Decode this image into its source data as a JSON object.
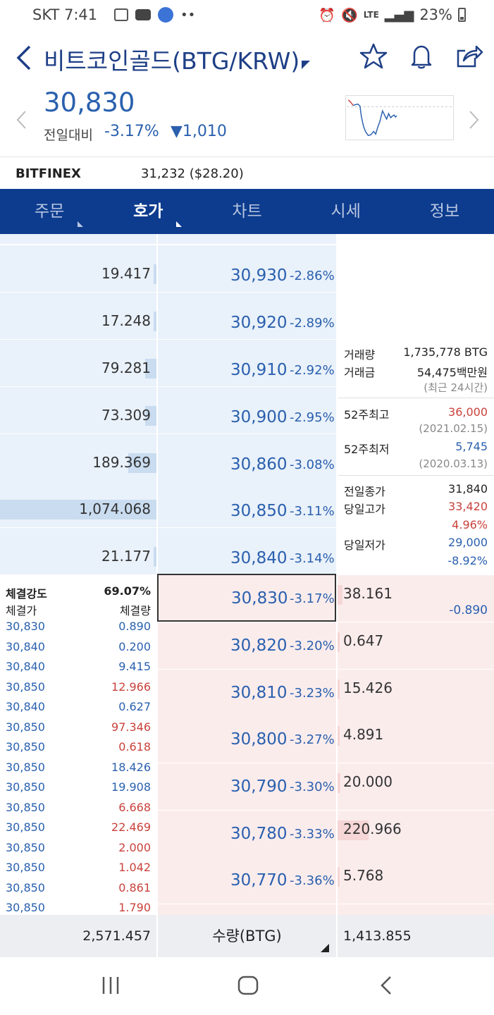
{
  "status": {
    "carrier_time": "SKT 7:41",
    "lte": "LTE",
    "battery": "23%"
  },
  "header": {
    "title": "비트코인골드(BTG/KRW)"
  },
  "price": {
    "current": "30,830",
    "prev_label": "전일대비",
    "change_pct": "-3.17%",
    "change_amt": "▼1,010"
  },
  "exchange": {
    "name": "BITFINEX",
    "value": "31,232 ($28.20)"
  },
  "tabs": [
    {
      "label": "주문",
      "active": false
    },
    {
      "label": "호가",
      "active": true
    },
    {
      "label": "차트",
      "active": false
    },
    {
      "label": "시세",
      "active": false
    },
    {
      "label": "정보",
      "active": false
    }
  ],
  "asks": [
    {
      "qty": "19.417",
      "price": "30,930",
      "rate": "-2.86%",
      "fill": 0.02
    },
    {
      "qty": "17.248",
      "price": "30,920",
      "rate": "-2.89%",
      "fill": 0.02
    },
    {
      "qty": "79.281",
      "price": "30,910",
      "rate": "-2.92%",
      "fill": 0.07
    },
    {
      "qty": "73.309",
      "price": "30,900",
      "rate": "-2.95%",
      "fill": 0.07
    },
    {
      "qty": "189.369",
      "price": "30,860",
      "rate": "-3.08%",
      "fill": 0.18
    },
    {
      "qty": "1,074.068",
      "price": "30,850",
      "rate": "-3.11%",
      "fill": 1.0
    },
    {
      "qty": "21.177",
      "price": "30,840",
      "rate": "-3.14%",
      "fill": 0.02
    }
  ],
  "bids": [
    {
      "qty": "38.161",
      "price": "30,830",
      "rate": "-3.17%",
      "fill": 0.03
    },
    {
      "qty": "0.647",
      "price": "30,820",
      "rate": "-3.20%",
      "fill": 0.0
    },
    {
      "qty": "15.426",
      "price": "30,810",
      "rate": "-3.23%",
      "fill": 0.015
    },
    {
      "qty": "4.891",
      "price": "30,800",
      "rate": "-3.27%",
      "fill": 0.005
    },
    {
      "qty": "20.000",
      "price": "30,790",
      "rate": "-3.30%",
      "fill": 0.02
    },
    {
      "qty": "220.966",
      "price": "30,780",
      "rate": "-3.33%",
      "fill": 0.2
    },
    {
      "qty": "5.768",
      "price": "30,770",
      "rate": "-3.36%",
      "fill": 0.005
    }
  ],
  "current_diff": "-0.890",
  "info": {
    "volume_label": "거래량",
    "volume": "1,735,778 BTG",
    "amount_label": "거래금",
    "amount": "54,475백만원",
    "period": "(최근 24시간)",
    "high52_label": "52주최고",
    "high52": "36,000",
    "high52_date": "(2021.02.15)",
    "low52_label": "52주최저",
    "low52": "5,745",
    "low52_date": "(2020.03.13)",
    "prev_close_label": "전일종가",
    "prev_close": "31,840",
    "day_high_label": "당일고가",
    "day_high": "33,420",
    "day_high_pct": "4.96%",
    "day_low_label": "당일저가",
    "day_low": "29,000",
    "day_low_pct": "-8.92%"
  },
  "trades_head": {
    "strength_label": "체결강도",
    "strength": "69.07%",
    "price_label": "체결가",
    "qty_label": "체결량"
  },
  "trades": [
    {
      "price": "30,830",
      "qty": "0.890",
      "side": "sell"
    },
    {
      "price": "30,840",
      "qty": "0.200",
      "side": "sell"
    },
    {
      "price": "30,840",
      "qty": "9.415",
      "side": "sell"
    },
    {
      "price": "30,850",
      "qty": "12.966",
      "side": "buy"
    },
    {
      "price": "30,840",
      "qty": "0.627",
      "side": "sell"
    },
    {
      "price": "30,850",
      "qty": "97.346",
      "side": "buy"
    },
    {
      "price": "30,850",
      "qty": "0.618",
      "side": "buy"
    },
    {
      "price": "30,850",
      "qty": "18.426",
      "side": "sell"
    },
    {
      "price": "30,850",
      "qty": "19.908",
      "side": "sell"
    },
    {
      "price": "30,850",
      "qty": "6.668",
      "side": "buy"
    },
    {
      "price": "30,850",
      "qty": "22.469",
      "side": "buy"
    },
    {
      "price": "30,850",
      "qty": "2.000",
      "side": "buy"
    },
    {
      "price": "30,850",
      "qty": "1.042",
      "side": "buy"
    },
    {
      "price": "30,850",
      "qty": "0.861",
      "side": "buy"
    },
    {
      "price": "30,850",
      "qty": "1.790",
      "side": "buy"
    }
  ],
  "footer": {
    "ask_total": "2,571.457",
    "unit": "수량(BTG)",
    "bid_total": "1,413.855"
  },
  "colors": {
    "brand": "#0d3c8e",
    "ask_bg": "#e9f1fa",
    "bid_bg": "#fbecec",
    "down": "#2a60ae",
    "up": "#c9413b"
  },
  "icons": [
    "back-arrow-icon",
    "star-icon",
    "bell-icon",
    "share-icon",
    "chevron-left-icon",
    "chevron-right-icon",
    "nav-recents-icon",
    "nav-home-icon",
    "nav-back-icon"
  ]
}
